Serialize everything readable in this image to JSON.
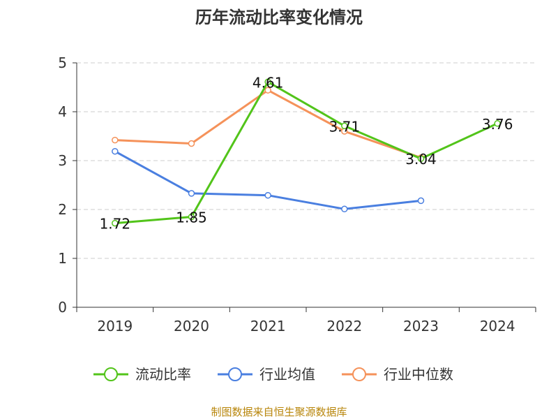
{
  "chart_data": {
    "type": "line",
    "title": "历年流动比率变化情况",
    "categories": [
      "2019",
      "2020",
      "2021",
      "2022",
      "2023",
      "2024"
    ],
    "ylim": [
      0,
      5
    ],
    "yticks": [
      0,
      1,
      2,
      3,
      4,
      5
    ],
    "grid": true,
    "legend_position": "bottom",
    "series": [
      {
        "name": "流动比率",
        "color": "#52c41a",
        "values": [
          1.72,
          1.85,
          4.61,
          3.71,
          3.04,
          3.76
        ],
        "labels": [
          "1.72",
          "1.85",
          "4.61",
          "3.71",
          "3.04",
          "3.76"
        ]
      },
      {
        "name": "行业均值",
        "color": "#4a7fe0",
        "values": [
          3.19,
          2.33,
          2.29,
          2.01,
          2.18,
          null
        ]
      },
      {
        "name": "行业中位数",
        "color": "#f5925a",
        "values": [
          3.42,
          3.35,
          4.44,
          3.6,
          3.06,
          null
        ]
      }
    ],
    "source": "制图数据来自恒生聚源数据库"
  }
}
